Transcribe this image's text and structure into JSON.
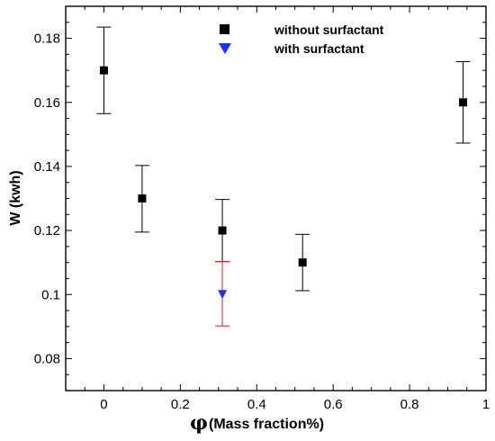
{
  "chart_data": {
    "type": "scatter",
    "xlabel_symbol": "φ",
    "xlabel": "(Mass fraction%)",
    "ylabel": "W (kwh)",
    "xlim": [
      -0.1,
      1.0
    ],
    "ylim": [
      0.07,
      0.19
    ],
    "x_ticks": [
      "0",
      "0.2",
      "0.4",
      "0.6",
      "0.8",
      "1"
    ],
    "y_ticks": [
      "0.08",
      "0.1",
      "0.12",
      "0.14",
      "0.16",
      "0.18"
    ],
    "x_tick_values": [
      0,
      0.2,
      0.4,
      0.6,
      0.8,
      1.0
    ],
    "y_tick_values": [
      0.08,
      0.1,
      0.12,
      0.14,
      0.16,
      0.18
    ],
    "legend_position": "top-center",
    "grid": false,
    "series": [
      {
        "name": "without surfactant",
        "marker": "square",
        "color": "#000000",
        "errorbar_color": "#000000",
        "points": [
          {
            "x": 0.0,
            "y": 0.17,
            "err_low": 0.1565,
            "err_high": 0.1835
          },
          {
            "x": 0.1,
            "y": 0.13,
            "err_low": 0.1195,
            "err_high": 0.1403
          },
          {
            "x": 0.31,
            "y": 0.12,
            "err_low": 0.1103,
            "err_high": 0.1297
          },
          {
            "x": 0.52,
            "y": 0.11,
            "err_low": 0.1012,
            "err_high": 0.1188
          },
          {
            "x": 0.94,
            "y": 0.16,
            "err_low": 0.1473,
            "err_high": 0.1727
          }
        ]
      },
      {
        "name": "with surfactant",
        "marker": "triangle-down",
        "color": "#1f2fff",
        "errorbar_color": "#cc2222",
        "points": [
          {
            "x": 0.31,
            "y": 0.1,
            "err_low": 0.0902,
            "err_high": 0.1103
          }
        ]
      }
    ]
  }
}
